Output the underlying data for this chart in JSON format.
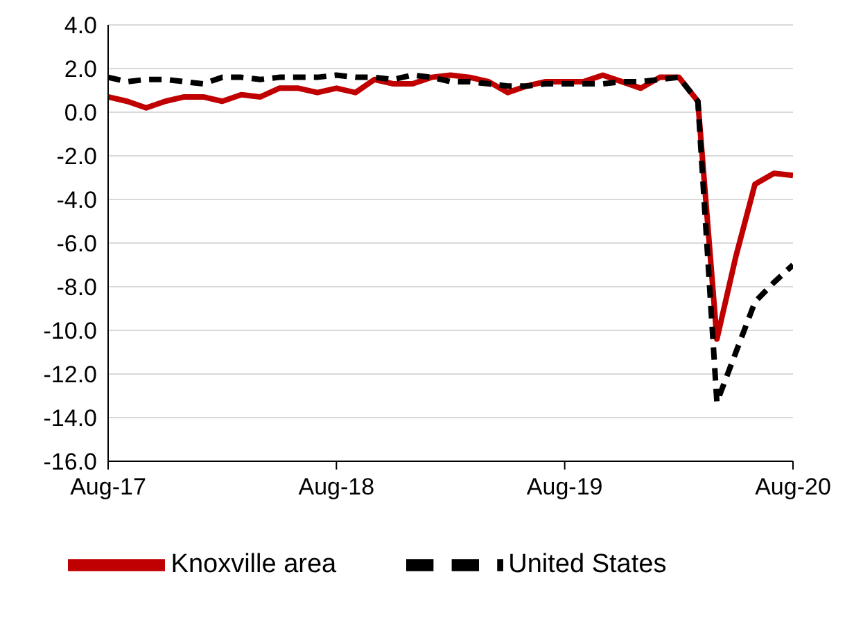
{
  "chart_data": {
    "type": "line",
    "x": [
      "2017-08",
      "2017-09",
      "2017-10",
      "2017-11",
      "2017-12",
      "2018-01",
      "2018-02",
      "2018-03",
      "2018-04",
      "2018-05",
      "2018-06",
      "2018-07",
      "2018-08",
      "2018-09",
      "2018-10",
      "2018-11",
      "2018-12",
      "2019-01",
      "2019-02",
      "2019-03",
      "2019-04",
      "2019-05",
      "2019-06",
      "2019-07",
      "2019-08",
      "2019-09",
      "2019-10",
      "2019-11",
      "2019-12",
      "2020-01",
      "2020-02",
      "2020-03",
      "2020-04",
      "2020-05",
      "2020-06",
      "2020-07",
      "2020-08"
    ],
    "series": [
      {
        "name": "Knoxville area",
        "color": "#c00000",
        "line_style": "solid",
        "values": [
          0.7,
          0.5,
          0.2,
          0.5,
          0.7,
          0.7,
          0.5,
          0.8,
          0.7,
          1.1,
          1.1,
          0.9,
          1.1,
          0.9,
          1.5,
          1.3,
          1.3,
          1.6,
          1.7,
          1.6,
          1.4,
          0.9,
          1.2,
          1.4,
          1.4,
          1.4,
          1.7,
          1.4,
          1.1,
          1.6,
          1.6,
          0.5,
          -10.4,
          -6.6,
          -3.3,
          -2.8,
          -2.9
        ]
      },
      {
        "name": "United States",
        "color": "#000000",
        "line_style": "dashed",
        "values": [
          1.6,
          1.4,
          1.5,
          1.5,
          1.4,
          1.3,
          1.6,
          1.6,
          1.5,
          1.6,
          1.6,
          1.6,
          1.7,
          1.6,
          1.6,
          1.5,
          1.7,
          1.6,
          1.4,
          1.4,
          1.3,
          1.2,
          1.2,
          1.3,
          1.3,
          1.3,
          1.3,
          1.4,
          1.4,
          1.5,
          1.6,
          0.5,
          -13.3,
          -11.0,
          -8.7,
          -7.8,
          -7.0
        ]
      }
    ],
    "xlim": [
      "2017-08",
      "2020-08"
    ],
    "xticks": [
      {
        "value": "2017-08",
        "label": "Aug-17"
      },
      {
        "value": "2018-08",
        "label": "Aug-18"
      },
      {
        "value": "2019-08",
        "label": "Aug-19"
      },
      {
        "value": "2020-08",
        "label": "Aug-20"
      }
    ],
    "ylim": [
      -16,
      4
    ],
    "yticks": [
      {
        "value": -16,
        "label": "-16.0"
      },
      {
        "value": -14,
        "label": "-14.0"
      },
      {
        "value": -12,
        "label": "-12.0"
      },
      {
        "value": -10,
        "label": "-10.0"
      },
      {
        "value": -8,
        "label": "-8.0"
      },
      {
        "value": -6,
        "label": "-6.0"
      },
      {
        "value": -4,
        "label": "-4.0"
      },
      {
        "value": -2,
        "label": "-2.0"
      },
      {
        "value": 0,
        "label": "0.0"
      },
      {
        "value": 2,
        "label": "2.0"
      },
      {
        "value": 4,
        "label": "4.0"
      }
    ],
    "grid": "y",
    "legend": "bottom",
    "marker": "none"
  }
}
